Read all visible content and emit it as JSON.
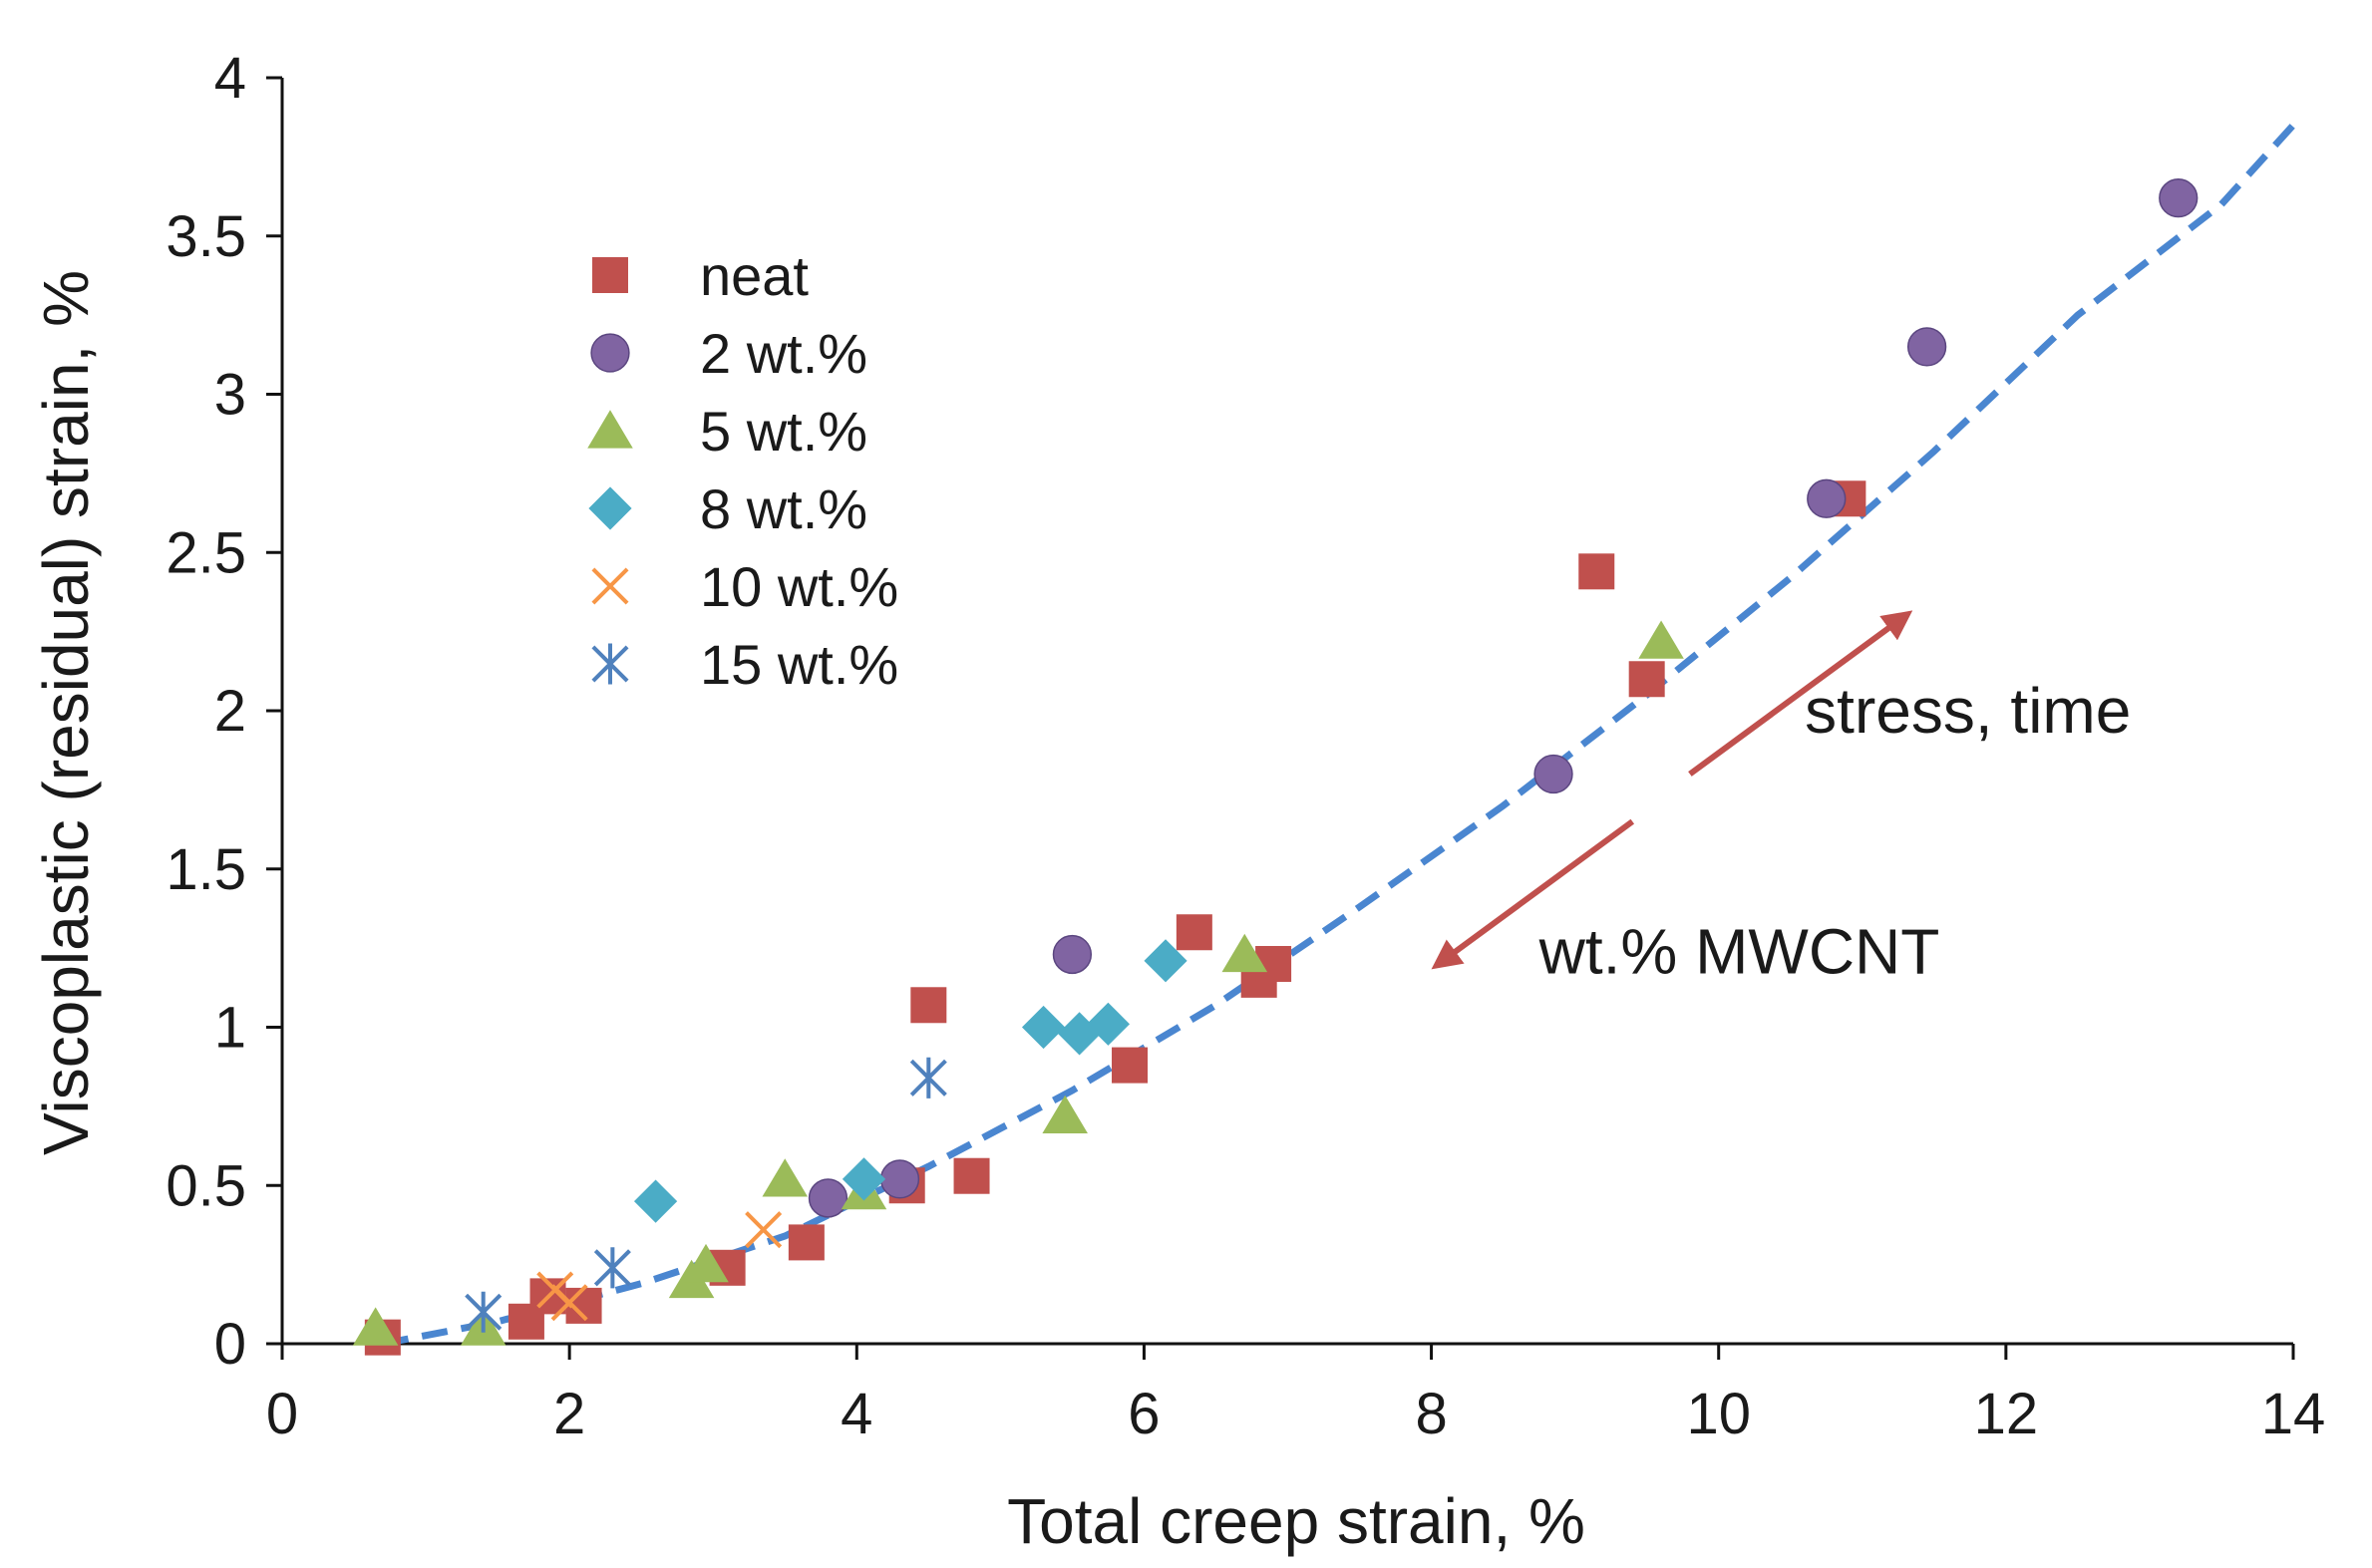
{
  "chart_data": {
    "type": "scatter",
    "title": "",
    "xlabel": "Total creep strain, %",
    "ylabel": "Viscoplastic (residual) strain, %",
    "xlim": [
      0,
      14
    ],
    "ylim": [
      0,
      4
    ],
    "x_ticks": [
      0,
      2,
      4,
      6,
      8,
      10,
      12,
      14
    ],
    "y_ticks": [
      0,
      0.5,
      1,
      1.5,
      2,
      2.5,
      3,
      3.5,
      4
    ],
    "grid": false,
    "legend_position": "upper-left",
    "series": [
      {
        "name": "neat",
        "marker": "square",
        "color": "#c0504d",
        "points": [
          [
            0.7,
            0.02
          ],
          [
            1.7,
            0.07
          ],
          [
            1.85,
            0.15
          ],
          [
            2.1,
            0.12
          ],
          [
            3.1,
            0.24
          ],
          [
            3.65,
            0.32
          ],
          [
            4.35,
            0.5
          ],
          [
            4.5,
            1.07
          ],
          [
            4.8,
            0.53
          ],
          [
            5.9,
            0.88
          ],
          [
            6.35,
            1.3
          ],
          [
            6.8,
            1.15
          ],
          [
            6.9,
            1.2
          ],
          [
            9.15,
            2.44
          ],
          [
            9.5,
            2.1
          ],
          [
            10.9,
            2.67
          ]
        ]
      },
      {
        "name": "2 wt.%",
        "marker": "circle",
        "color": "#8064a2",
        "points": [
          [
            3.8,
            0.46
          ],
          [
            4.3,
            0.52
          ],
          [
            5.5,
            1.23
          ],
          [
            8.85,
            1.8
          ],
          [
            10.75,
            2.67
          ],
          [
            11.45,
            3.15
          ],
          [
            13.2,
            3.62
          ]
        ]
      },
      {
        "name": "5 wt.%",
        "marker": "triangle",
        "color": "#9bbb59",
        "points": [
          [
            0.65,
            0.05
          ],
          [
            1.4,
            0.05
          ],
          [
            2.85,
            0.2
          ],
          [
            2.95,
            0.25
          ],
          [
            3.5,
            0.52
          ],
          [
            4.05,
            0.48
          ],
          [
            5.45,
            0.72
          ],
          [
            6.7,
            1.23
          ],
          [
            9.6,
            2.22
          ]
        ]
      },
      {
        "name": "8 wt.%",
        "marker": "diamond",
        "color": "#4bacc6",
        "points": [
          [
            2.6,
            0.45
          ],
          [
            4.05,
            0.52
          ],
          [
            5.3,
            1.0
          ],
          [
            5.55,
            0.98
          ],
          [
            5.75,
            1.01
          ],
          [
            6.15,
            1.21
          ]
        ]
      },
      {
        "name": "10 wt.%",
        "marker": "x",
        "color": "#f79646",
        "points": [
          [
            1.9,
            0.17
          ],
          [
            2.0,
            0.13
          ],
          [
            3.35,
            0.36
          ]
        ]
      },
      {
        "name": "15 wt.%",
        "marker": "star",
        "color": "#4f81bd",
        "points": [
          [
            1.4,
            0.1
          ],
          [
            2.3,
            0.24
          ],
          [
            4.5,
            0.84
          ]
        ]
      }
    ],
    "trend_line": {
      "style": "dashed",
      "color": "#4a86d0",
      "points": [
        [
          0.7,
          0.0
        ],
        [
          1.5,
          0.07
        ],
        [
          2.5,
          0.19
        ],
        [
          3.5,
          0.34
        ],
        [
          4.5,
          0.56
        ],
        [
          5.5,
          0.8
        ],
        [
          6.5,
          1.07
        ],
        [
          7.5,
          1.38
        ],
        [
          8.5,
          1.7
        ],
        [
          9.5,
          2.05
        ],
        [
          10.5,
          2.42
        ],
        [
          11.5,
          2.82
        ],
        [
          12.5,
          3.25
        ],
        [
          13.5,
          3.6
        ],
        [
          14.0,
          3.85
        ]
      ]
    },
    "annotations": [
      {
        "text": "stress, time",
        "arrow_color": "#c0504d",
        "arrow_from": [
          9.8,
          1.8
        ],
        "arrow_to": [
          11.3,
          2.3
        ],
        "label_at": [
          10.6,
          1.93
        ]
      },
      {
        "text": "wt.% MWCNT",
        "arrow_color": "#c0504d",
        "arrow_from": [
          9.4,
          1.65
        ],
        "arrow_to": [
          8.05,
          1.2
        ],
        "label_at": [
          8.75,
          1.17
        ]
      }
    ]
  }
}
